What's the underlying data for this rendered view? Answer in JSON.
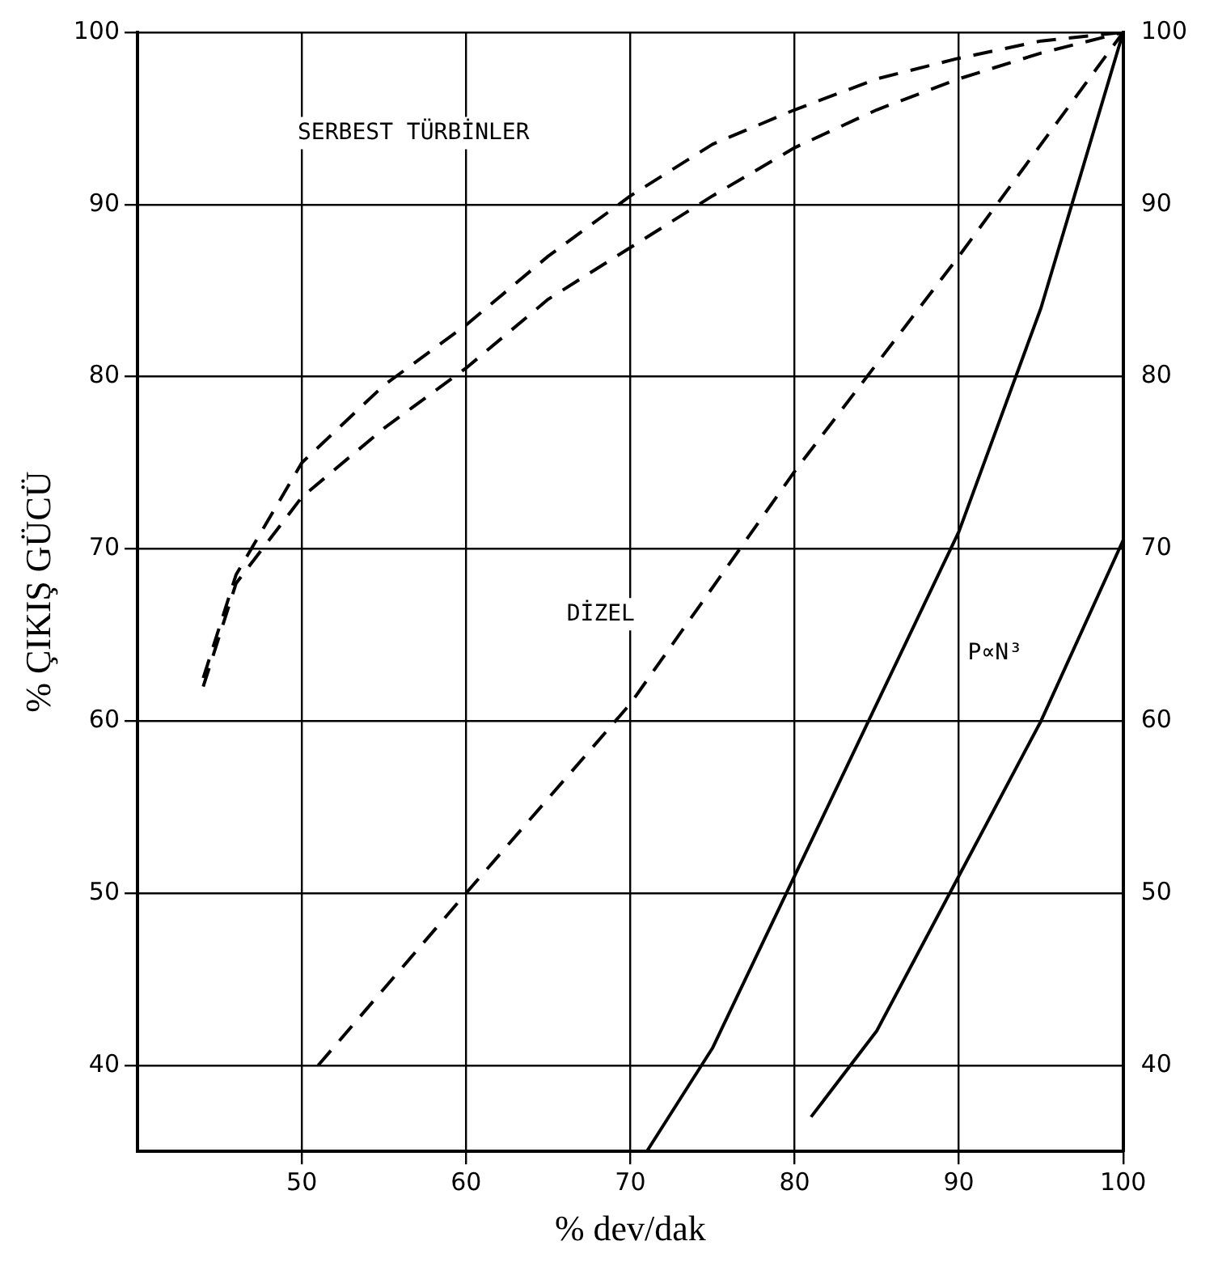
{
  "chart_data": {
    "type": "line",
    "xlabel": "% dev/dak",
    "ylabel": "% ÇIKIŞ GÜCÜ",
    "xlim": [
      40,
      100
    ],
    "xticks": [
      50,
      60,
      70,
      80,
      90,
      100
    ],
    "ylim": [
      35,
      100
    ],
    "yticks": [
      40,
      50,
      60,
      70,
      80,
      90,
      100
    ],
    "y2lim": [
      35,
      100
    ],
    "y2ticks": [
      40,
      50,
      60,
      70,
      80,
      90,
      100
    ],
    "grid": true,
    "legend": false,
    "marker": "none",
    "series": [
      {
        "color": "#000000",
        "line_style": "dashed",
        "x": [
          44,
          46,
          50,
          55,
          60,
          65,
          70,
          75,
          80,
          85,
          90,
          95,
          100
        ],
        "values": [
          62.5,
          68.5,
          75,
          79.5,
          83,
          87,
          90.5,
          93.5,
          95.5,
          97.3,
          98.5,
          99.5,
          100
        ]
      },
      {
        "color": "#000000",
        "line_style": "dashed",
        "x": [
          44,
          46,
          50,
          55,
          60,
          65,
          70,
          75,
          80,
          85,
          90,
          95,
          100
        ],
        "values": [
          62,
          68,
          73,
          77,
          80.5,
          84.5,
          87.5,
          90.5,
          93.3,
          95.5,
          97.3,
          98.8,
          100
        ]
      },
      {
        "color": "#000000",
        "line_style": "dashed",
        "x": [
          51,
          60,
          70,
          80,
          90,
          100
        ],
        "values": [
          40,
          50,
          61,
          74.5,
          87,
          100
        ]
      },
      {
        "color": "#000000",
        "line_style": "solid",
        "x": [
          71,
          75,
          80,
          85,
          90,
          95,
          100
        ],
        "values": [
          35,
          41,
          51,
          61,
          71,
          84,
          100
        ]
      },
      {
        "color": "#000000",
        "line_style": "solid",
        "x": [
          81,
          85,
          90,
          95,
          100
        ],
        "values": [
          37,
          42,
          51,
          60,
          70.5
        ]
      }
    ],
    "annotations": [
      "SERBEST TÜRBİNLER",
      "DİZEL",
      "P∝N³"
    ]
  }
}
